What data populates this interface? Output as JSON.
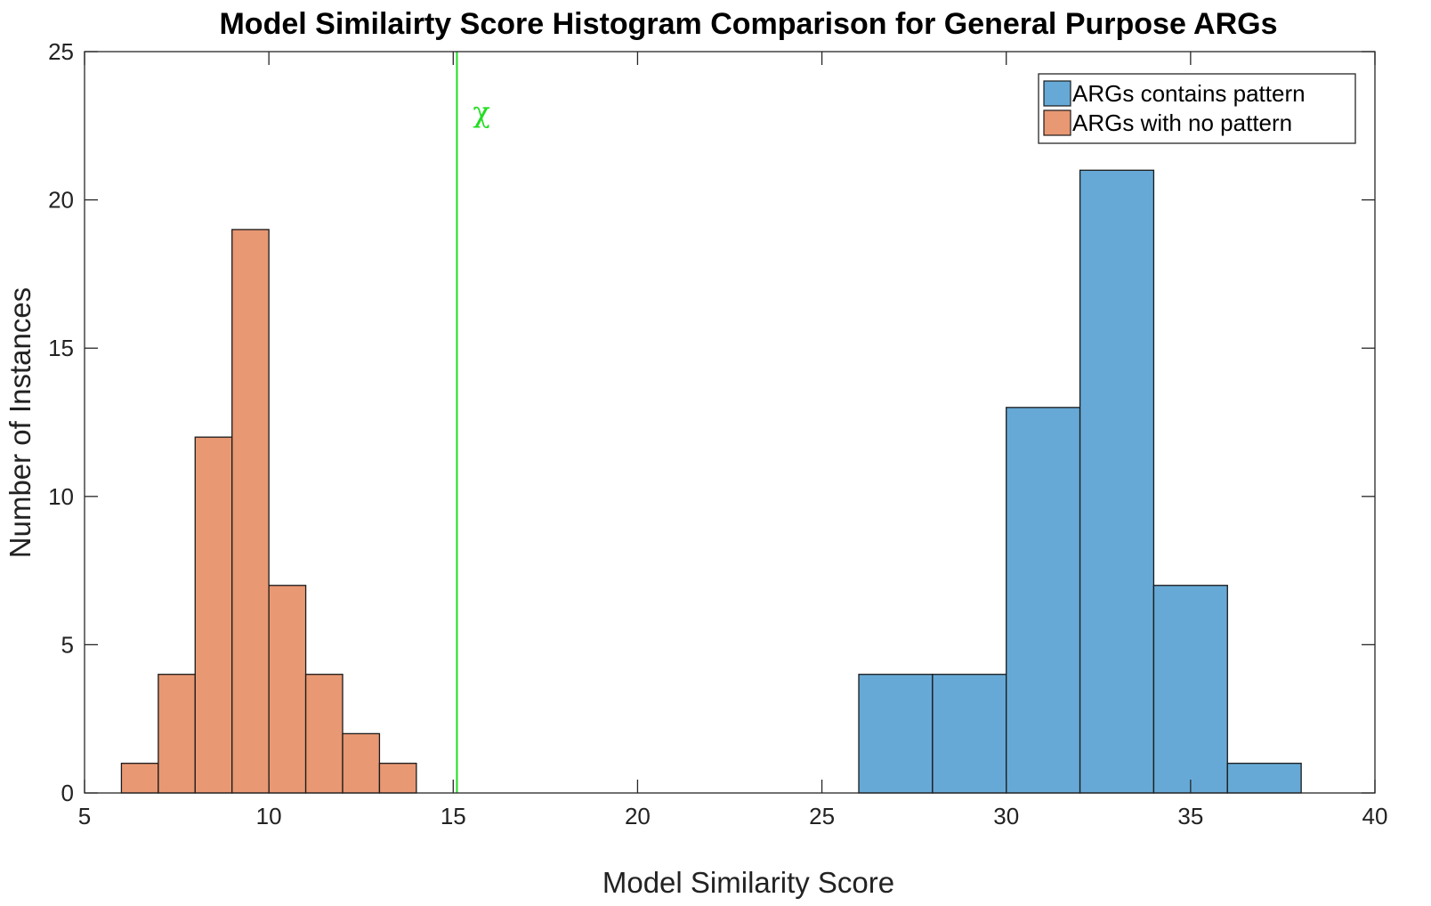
{
  "chart_data": {
    "type": "bar",
    "title": "Model Similairty Score Histogram Comparison for General Purpose ARGs",
    "xlabel": "Model Similarity Score",
    "ylabel": "Number of Instances",
    "xlim": [
      5,
      40
    ],
    "ylim": [
      0,
      25
    ],
    "xticks": [
      5,
      10,
      15,
      20,
      25,
      30,
      35,
      40
    ],
    "yticks": [
      0,
      5,
      10,
      15,
      20,
      25
    ],
    "grid": false,
    "legend_position": "top-right",
    "series": [
      {
        "name": "ARGs contains pattern",
        "color": "#66a9d6",
        "bin_edges": [
          26,
          28,
          30,
          32,
          34,
          36,
          38
        ],
        "counts": [
          4,
          4,
          13,
          21,
          7,
          1
        ]
      },
      {
        "name": "ARGs with no pattern",
        "color": "#e89873",
        "bin_edges": [
          6,
          7,
          8,
          9,
          10,
          11,
          12,
          13,
          14
        ],
        "counts": [
          1,
          4,
          12,
          19,
          7,
          4,
          2,
          1
        ]
      }
    ],
    "threshold_line": {
      "x": 15.1,
      "label": "χ",
      "color": "#22dd22"
    }
  }
}
